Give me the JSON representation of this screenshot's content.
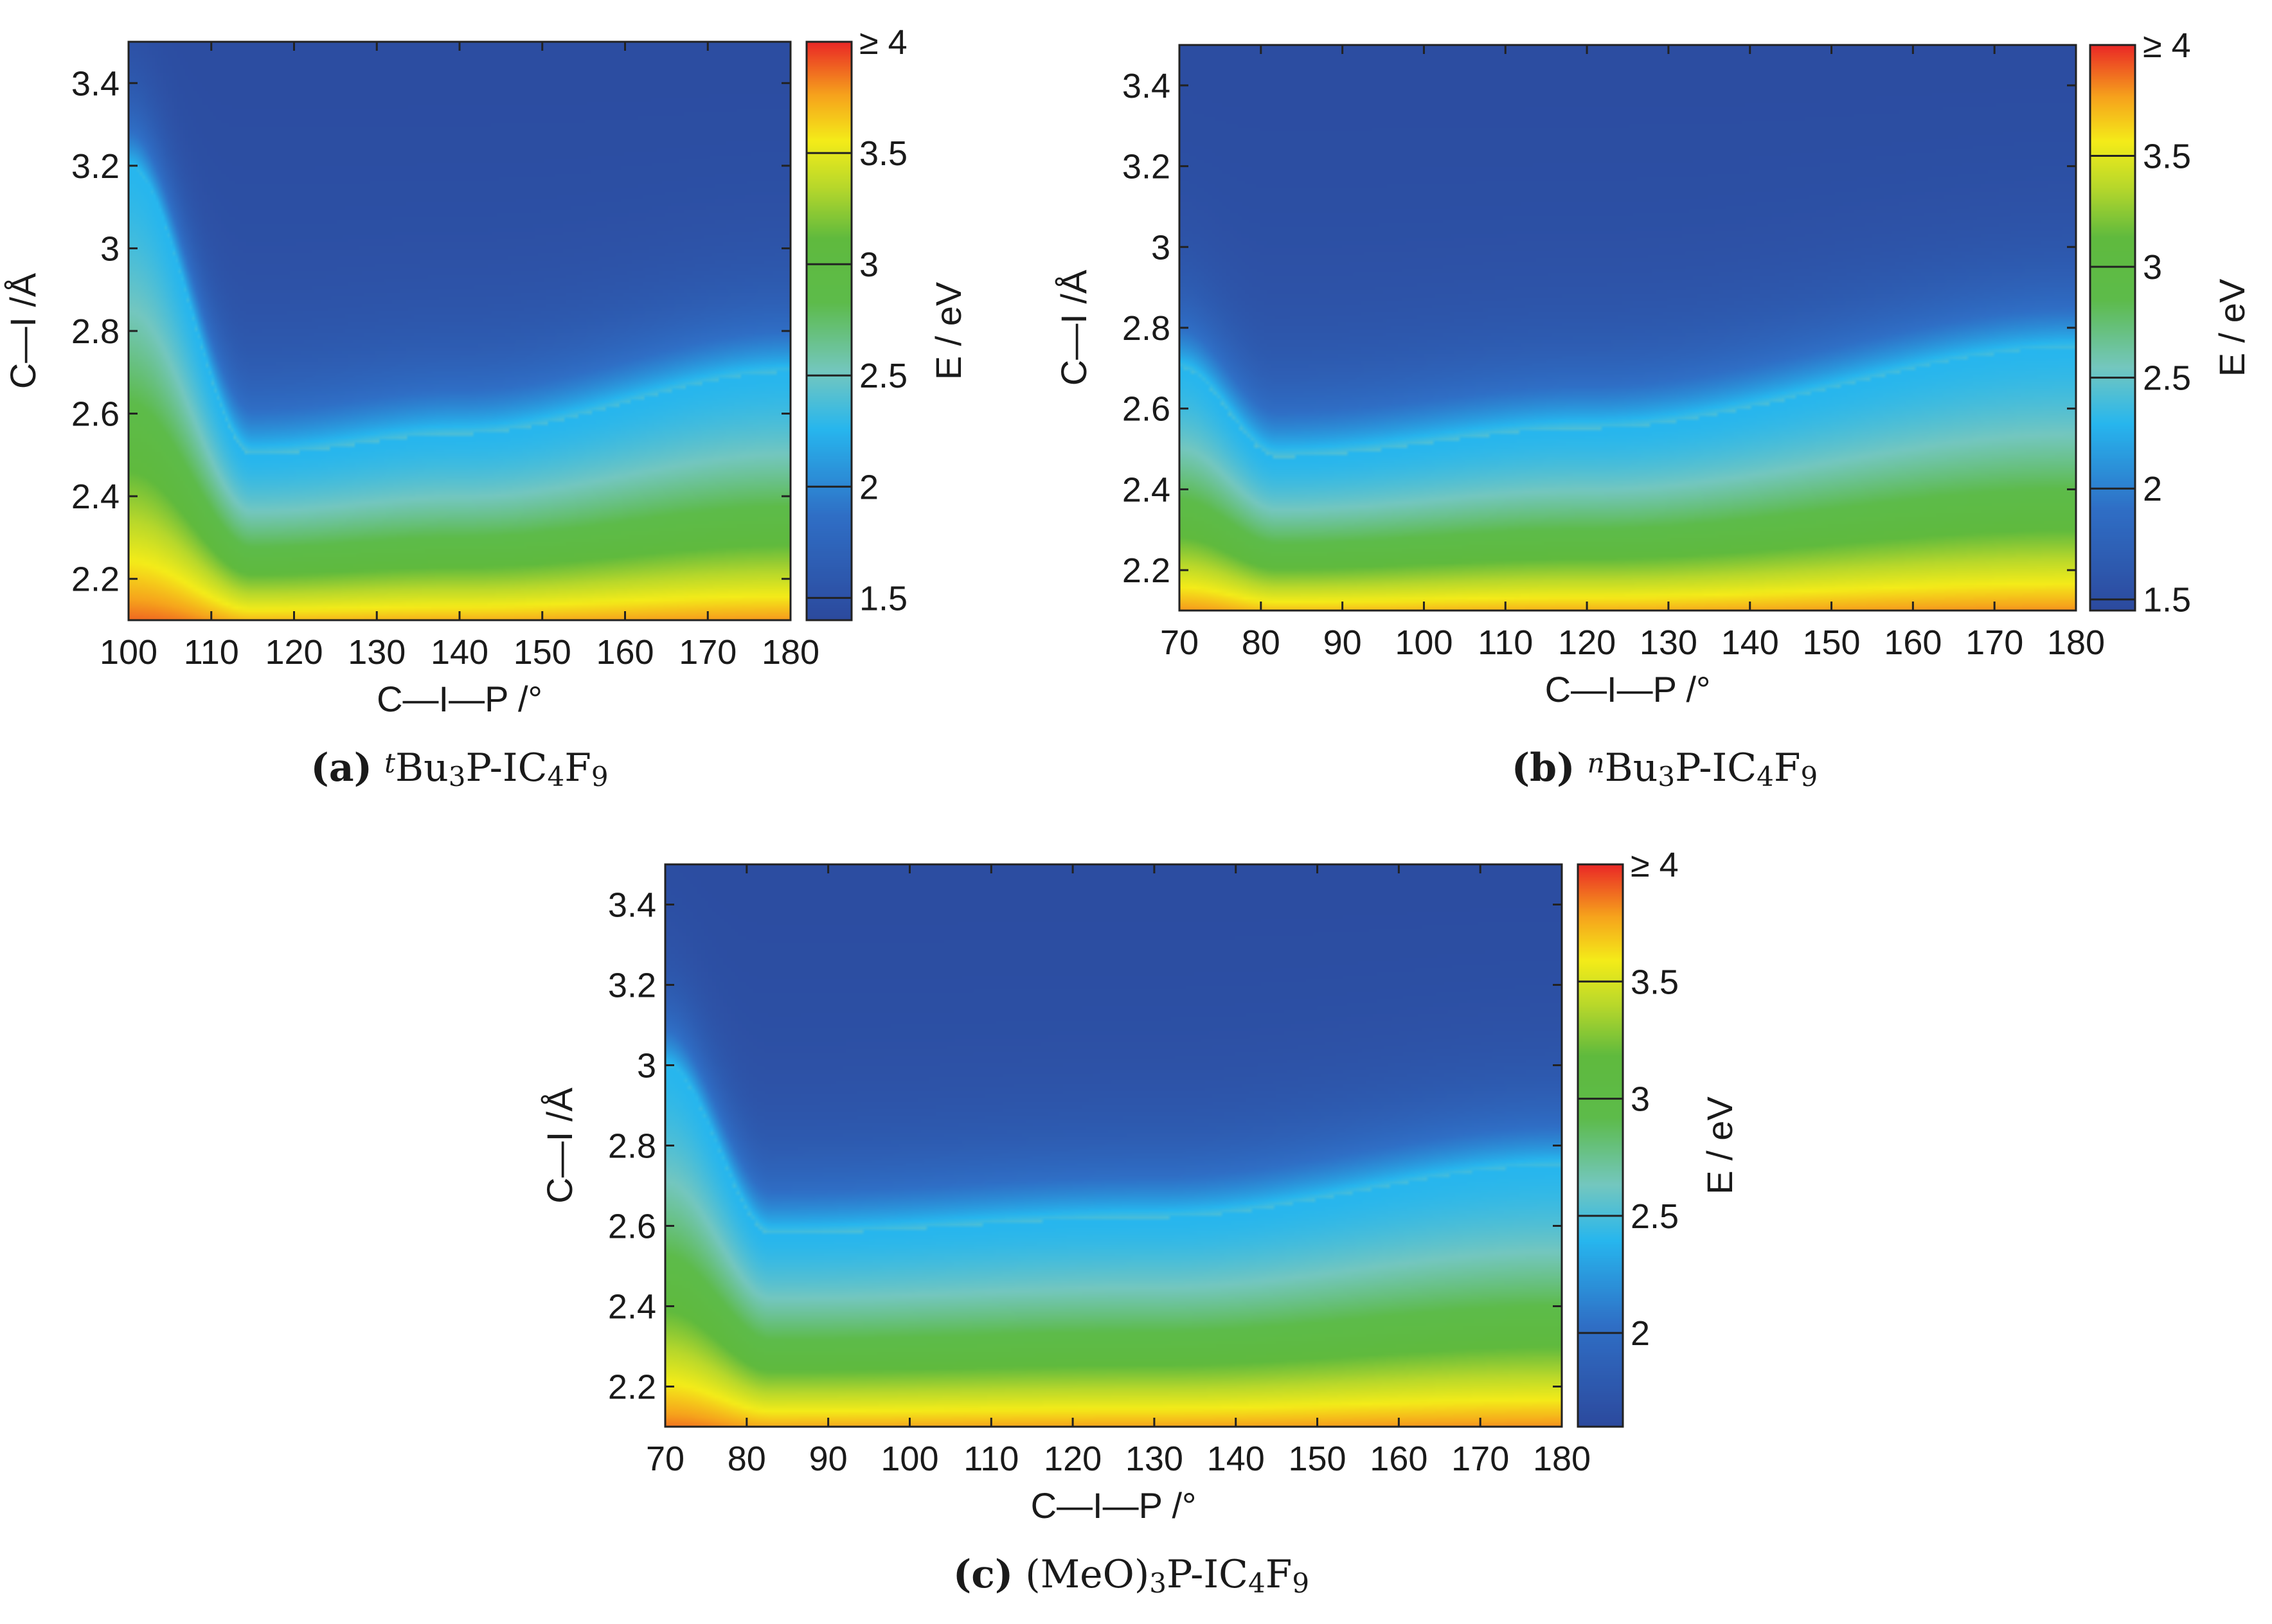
{
  "colormap": {
    "stops": [
      {
        "v": 0.0,
        "color": "#2c4a9e"
      },
      {
        "v": 0.18,
        "color": "#2f6fc6"
      },
      {
        "v": 0.33,
        "color": "#27b6ee"
      },
      {
        "v": 0.43,
        "color": "#74c7bf"
      },
      {
        "v": 0.55,
        "color": "#5dbb4a"
      },
      {
        "v": 0.66,
        "color": "#5fba3e"
      },
      {
        "v": 0.75,
        "color": "#b8d82b"
      },
      {
        "v": 0.83,
        "color": "#f4ec19"
      },
      {
        "v": 0.91,
        "color": "#f6a21c"
      },
      {
        "v": 1.0,
        "color": "#ea2a26"
      }
    ]
  },
  "chart_data": [
    {
      "type": "heatmap",
      "panel": "a",
      "caption_label": "(a)",
      "caption_parts": [
        "t",
        "Bu",
        "3",
        "P-IC",
        "4",
        "F",
        "9"
      ],
      "xlabel": "C—I—P /°",
      "ylabel": "C—I /Å",
      "colorbar_label": "E / eV",
      "xlim": [
        100,
        180
      ],
      "ylim": [
        2.1,
        3.5
      ],
      "x_ticks": [
        100,
        110,
        120,
        130,
        140,
        150,
        160,
        170,
        180
      ],
      "y_ticks": [
        2.2,
        2.4,
        2.6,
        2.8,
        3,
        3.2,
        3.4
      ],
      "colorbar_range": [
        1.4,
        4.0
      ],
      "colorbar_ticks": [
        {
          "value": 1.5,
          "label": "1.5"
        },
        {
          "value": 2,
          "label": "2"
        },
        {
          "value": 2.5,
          "label": "2.5"
        },
        {
          "value": 3,
          "label": "3"
        },
        {
          "value": 3.5,
          "label": "3.5"
        },
        {
          "value": 4,
          "label": "≥ 4"
        }
      ],
      "minimum_valley": {
        "x": [
          100,
          115,
          140,
          180
        ],
        "y": [
          3.2,
          2.5,
          2.55,
          2.7
        ]
      }
    },
    {
      "type": "heatmap",
      "panel": "b",
      "caption_label": "(b)",
      "caption_parts": [
        "n",
        "Bu",
        "3",
        "P-IC",
        "4",
        "F",
        "9"
      ],
      "xlabel": "C—I—P /°",
      "ylabel": "C—I /Å",
      "colorbar_label": "E / eV",
      "xlim": [
        70,
        180
      ],
      "ylim": [
        2.1,
        3.5
      ],
      "x_ticks": [
        70,
        80,
        90,
        100,
        110,
        120,
        130,
        140,
        150,
        160,
        170,
        180
      ],
      "y_ticks": [
        2.2,
        2.4,
        2.6,
        2.8,
        3,
        3.2,
        3.4
      ],
      "colorbar_range": [
        1.45,
        4.0
      ],
      "colorbar_ticks": [
        {
          "value": 1.5,
          "label": "1.5"
        },
        {
          "value": 2,
          "label": "2"
        },
        {
          "value": 2.5,
          "label": "2.5"
        },
        {
          "value": 3,
          "label": "3"
        },
        {
          "value": 3.5,
          "label": "3.5"
        },
        {
          "value": 4,
          "label": "≥ 4"
        }
      ],
      "minimum_valley": {
        "x": [
          70,
          82,
          120,
          180
        ],
        "y": [
          2.7,
          2.48,
          2.55,
          2.75
        ]
      }
    },
    {
      "type": "heatmap",
      "panel": "c",
      "caption_label": "(c)",
      "caption_parts": [
        "",
        "(MeO)",
        "3",
        "P-IC",
        "4",
        "F",
        "9"
      ],
      "xlabel": "C—I—P /°",
      "ylabel": "C—I /Å",
      "colorbar_label": "E / eV",
      "xlim": [
        70,
        180
      ],
      "ylim": [
        2.1,
        3.5
      ],
      "x_ticks": [
        70,
        80,
        90,
        100,
        110,
        120,
        130,
        140,
        150,
        160,
        170,
        180
      ],
      "y_ticks": [
        2.2,
        2.4,
        2.6,
        2.8,
        3,
        3.2,
        3.4
      ],
      "colorbar_range": [
        1.6,
        4.0
      ],
      "colorbar_ticks": [
        {
          "value": 2,
          "label": "2"
        },
        {
          "value": 2.5,
          "label": "2.5"
        },
        {
          "value": 3,
          "label": "3"
        },
        {
          "value": 3.5,
          "label": "3.5"
        },
        {
          "value": 4,
          "label": "≥ 4"
        }
      ],
      "minimum_valley": {
        "x": [
          70,
          83,
          130,
          180
        ],
        "y": [
          3.0,
          2.58,
          2.62,
          2.75
        ]
      }
    }
  ]
}
